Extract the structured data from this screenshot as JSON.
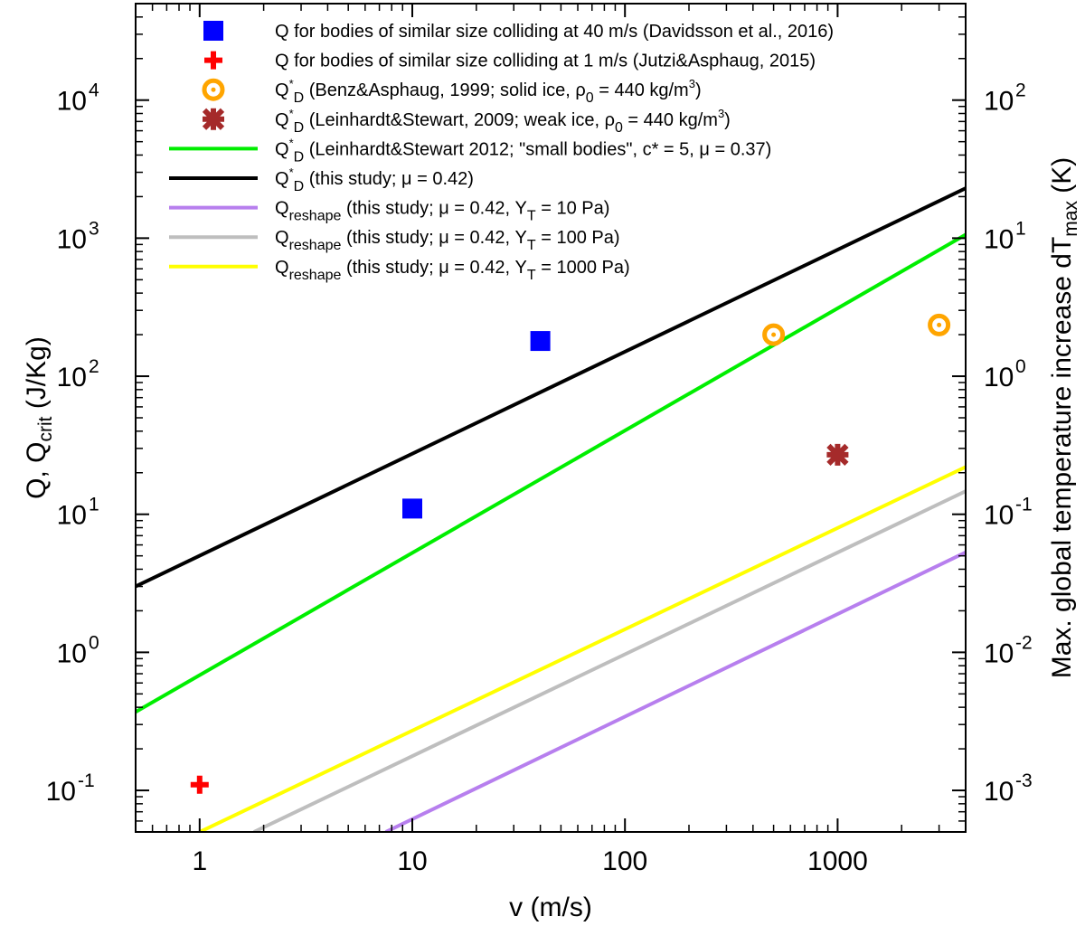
{
  "chart_data": {
    "type": "line",
    "x_scale": "log",
    "y_scale": "log",
    "xlim": [
      0.5,
      4000
    ],
    "ylim": [
      0.05,
      50000
    ],
    "y2lim": [
      0.0005,
      500
    ],
    "xlabel": "v (m/s)",
    "ylabel": {
      "main": "Q, Q",
      "sub": "crit",
      "tail": " (J/Kg)"
    },
    "y2label": {
      "main": "Max. global temperature increase dT",
      "sub": "max",
      "tail": " (K)"
    },
    "x_ticks": [
      {
        "value": 1,
        "label": "1"
      },
      {
        "value": 10,
        "label": "10"
      },
      {
        "value": 100,
        "label": "100"
      },
      {
        "value": 1000,
        "label": "1000"
      }
    ],
    "y_ticks": [
      {
        "value": 0.1,
        "base": "10",
        "exp": "-1"
      },
      {
        "value": 1,
        "base": "10",
        "exp": "0"
      },
      {
        "value": 10,
        "base": "10",
        "exp": "1"
      },
      {
        "value": 100,
        "base": "10",
        "exp": "2"
      },
      {
        "value": 1000,
        "base": "10",
        "exp": "3"
      },
      {
        "value": 10000,
        "base": "10",
        "exp": "4"
      }
    ],
    "y2_ticks": [
      {
        "value": 0.001,
        "base": "10",
        "exp": "-3"
      },
      {
        "value": 0.01,
        "base": "10",
        "exp": "-2"
      },
      {
        "value": 0.1,
        "base": "10",
        "exp": "-1"
      },
      {
        "value": 1,
        "base": "10",
        "exp": "0"
      },
      {
        "value": 10,
        "base": "10",
        "exp": "1"
      },
      {
        "value": 100,
        "base": "10",
        "exp": "2"
      }
    ],
    "scatter_series": [
      {
        "id": "davidsson",
        "marker": "square",
        "color": "#0000ff",
        "label": [
          {
            "t": "Q for bodies of similar size colliding at 40 m/s (Davidsson et al., 2016)"
          }
        ],
        "points": [
          [
            10,
            11
          ],
          [
            40,
            180
          ]
        ]
      },
      {
        "id": "jutzi",
        "marker": "plus",
        "color": "#ff0000",
        "label": [
          {
            "t": "Q for bodies of similar size colliding at 1 m/s (Jutzi&Asphaug, 2015)"
          }
        ],
        "points": [
          [
            1,
            0.11
          ]
        ]
      },
      {
        "id": "benz",
        "marker": "target",
        "color": "#ffa500",
        "label": [
          {
            "t": "Q"
          },
          {
            "t": "*",
            "k": "sup"
          },
          {
            "t": "D",
            "k": "sub"
          },
          {
            "t": " (Benz&Asphaug, 1999; solid ice, ρ"
          },
          {
            "t": "0",
            "k": "sub"
          },
          {
            "t": "  = 440 kg/m"
          },
          {
            "t": "3",
            "k": "sup"
          },
          {
            "t": ")"
          }
        ],
        "points": [
          [
            500,
            200
          ],
          [
            3000,
            235
          ]
        ]
      },
      {
        "id": "leinhardt2009",
        "marker": "star",
        "color": "#a52a2a",
        "label": [
          {
            "t": "Q"
          },
          {
            "t": "*",
            "k": "sup"
          },
          {
            "t": "D",
            "k": "sub"
          },
          {
            "t": " (Leinhardt&Stewart, 2009; weak ice, ρ"
          },
          {
            "t": "0",
            "k": "sub"
          },
          {
            "t": " = 440 kg/m"
          },
          {
            "t": "3",
            "k": "sup"
          },
          {
            "t": ")"
          }
        ],
        "points": [
          [
            1000,
            27
          ]
        ]
      }
    ],
    "line_series": [
      {
        "id": "leinhardt2012",
        "color": "#00ee00",
        "label": [
          {
            "t": "Q"
          },
          {
            "t": "*",
            "k": "sup"
          },
          {
            "t": "D",
            "k": "sub"
          },
          {
            "t": " (Leinhardt&Stewart 2012; \"small bodies\", c* = 5, μ = 0.37)"
          }
        ],
        "points": [
          [
            0.5,
            0.37
          ],
          [
            4000,
            1060
          ]
        ]
      },
      {
        "id": "this_study",
        "color": "#000000",
        "label": [
          {
            "t": "Q"
          },
          {
            "t": "*",
            "k": "sup"
          },
          {
            "t": "D",
            "k": "sub"
          },
          {
            "t": " (this study; μ = 0.42)"
          }
        ],
        "points": [
          [
            0.5,
            3.0
          ],
          [
            4000,
            2300
          ]
        ]
      },
      {
        "id": "reshape_10",
        "color": "#b77fee",
        "label": [
          {
            "t": "Q"
          },
          {
            "t": "reshape",
            "k": "sub"
          },
          {
            "t": " (this study; μ = 0.42, Y"
          },
          {
            "t": "T",
            "k": "sub"
          },
          {
            "t": " = 10 Pa)"
          }
        ],
        "points": [
          [
            7.5,
            0.05
          ],
          [
            4000,
            5.3
          ]
        ]
      },
      {
        "id": "reshape_100",
        "color": "#bebebe",
        "label": [
          {
            "t": "Q"
          },
          {
            "t": "reshape",
            "k": "sub"
          },
          {
            "t": " (this study; μ = 0.42, Y"
          },
          {
            "t": "T",
            "k": "sub"
          },
          {
            "t": " = 100 Pa)"
          }
        ],
        "points": [
          [
            1.8,
            0.05
          ],
          [
            4000,
            14.7
          ]
        ]
      },
      {
        "id": "reshape_1000",
        "color": "#ffff00",
        "label": [
          {
            "t": "Q"
          },
          {
            "t": "reshape",
            "k": "sub"
          },
          {
            "t": " (this study; μ = 0.42, Y"
          },
          {
            "t": "T",
            "k": "sub"
          },
          {
            "t": " = 1000 Pa)"
          }
        ],
        "points": [
          [
            1.0,
            0.05
          ],
          [
            4000,
            22
          ]
        ]
      }
    ],
    "legend_order": [
      "davidsson",
      "jutzi",
      "benz",
      "leinhardt2009",
      "leinhardt2012",
      "this_study",
      "reshape_10",
      "reshape_100",
      "reshape_1000"
    ],
    "legend_position": "top-left, inside plot"
  }
}
